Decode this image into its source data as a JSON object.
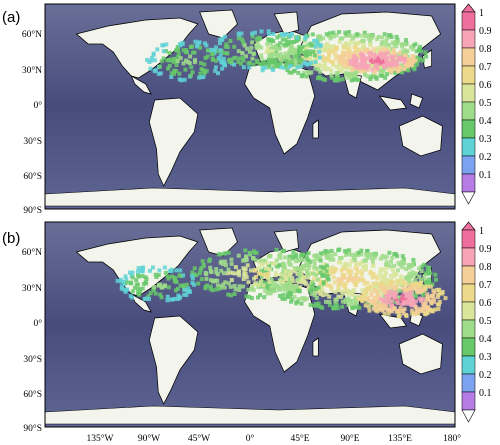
{
  "panels": [
    {
      "label": "(a)",
      "name": "panel-a"
    },
    {
      "label": "(b)",
      "name": "panel-b"
    }
  ],
  "lat_ticks": [
    "60°N",
    "30°N",
    "0°",
    "30°S",
    "60°S",
    "90°S"
  ],
  "lon_ticks": [
    "135°W",
    "90°W",
    "45°W",
    "0°",
    "45°E",
    "90°E",
    "135°E",
    "180°"
  ],
  "colorbar": {
    "labels": [
      "1",
      "0.9",
      "0.8",
      "0.7",
      "0.6",
      "0.5",
      "0.4",
      "0.3",
      "0.2",
      "0.1"
    ],
    "colors": [
      "#ee6f9c",
      "#f7a4b6",
      "#f5cf98",
      "#ecd98a",
      "#d9e59a",
      "#9fdc8a",
      "#67c96a",
      "#5fd2d6",
      "#7aa2ef",
      "#b57ce6"
    ]
  },
  "colors": {
    "ocean": "#4a4f7e",
    "land": "#f3f5ec",
    "coast": "#000000"
  }
}
